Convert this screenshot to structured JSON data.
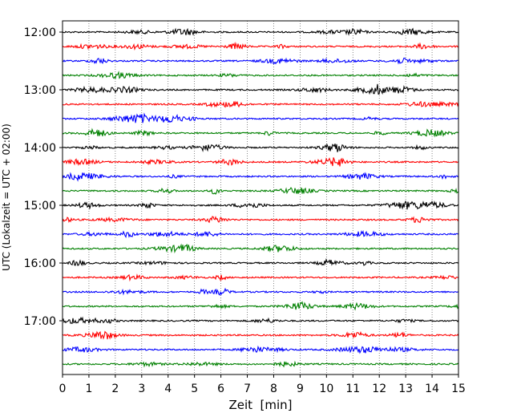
{
  "chart_data": {
    "type": "line",
    "title": "",
    "xlabel": "Zeit  [min]",
    "ylabel": "UTC (Lokalzeit = UTC + 02:00)",
    "xlim": [
      0,
      15
    ],
    "xticks": [
      "0",
      "1",
      "2",
      "3",
      "4",
      "5",
      "6",
      "7",
      "8",
      "9",
      "10",
      "11",
      "12",
      "13",
      "14",
      "15"
    ],
    "ytick_labels": [
      "12:00",
      "13:00",
      "14:00",
      "15:00",
      "16:00",
      "17:00"
    ],
    "grid": "vertical dotted",
    "line_colors": [
      "#000000",
      "#ff0000",
      "#0000ff",
      "#008000"
    ],
    "traces": [
      {
        "start": "12:00",
        "color": "#000000"
      },
      {
        "start": "12:15",
        "color": "#ff0000"
      },
      {
        "start": "12:30",
        "color": "#0000ff"
      },
      {
        "start": "12:45",
        "color": "#008000"
      },
      {
        "start": "13:00",
        "color": "#000000"
      },
      {
        "start": "13:15",
        "color": "#ff0000"
      },
      {
        "start": "13:30",
        "color": "#0000ff"
      },
      {
        "start": "13:45",
        "color": "#008000"
      },
      {
        "start": "14:00",
        "color": "#000000"
      },
      {
        "start": "14:15",
        "color": "#ff0000"
      },
      {
        "start": "14:30",
        "color": "#0000ff"
      },
      {
        "start": "14:45",
        "color": "#008000"
      },
      {
        "start": "15:00",
        "color": "#000000"
      },
      {
        "start": "15:15",
        "color": "#ff0000"
      },
      {
        "start": "15:30",
        "color": "#0000ff"
      },
      {
        "start": "15:45",
        "color": "#008000"
      },
      {
        "start": "16:00",
        "color": "#000000"
      },
      {
        "start": "16:15",
        "color": "#ff0000"
      },
      {
        "start": "16:30",
        "color": "#0000ff"
      },
      {
        "start": "16:45",
        "color": "#008000"
      },
      {
        "start": "17:00",
        "color": "#000000"
      },
      {
        "start": "17:15",
        "color": "#ff0000"
      },
      {
        "start": "17:30",
        "color": "#0000ff"
      },
      {
        "start": "17:45",
        "color": "#008000"
      }
    ]
  }
}
